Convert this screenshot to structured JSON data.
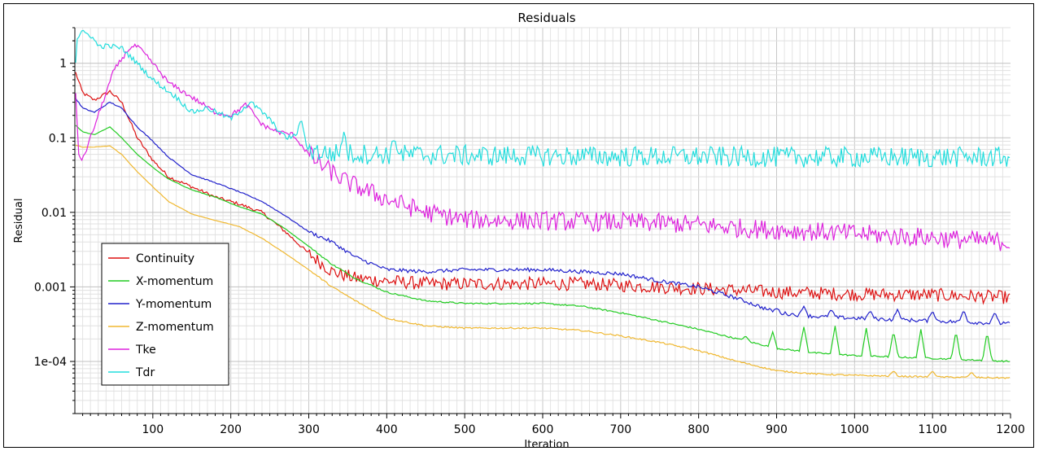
{
  "chart_data": {
    "type": "line",
    "title": "Residuals",
    "xlabel": "Iteration",
    "ylabel": "Residual",
    "xlim": [
      0,
      1200
    ],
    "ylim": [
      2e-05,
      3
    ],
    "y_scale": "log",
    "grid": true,
    "legend_position": "lower-left",
    "x_ticks": [
      {
        "value": 100,
        "label": "100"
      },
      {
        "value": 200,
        "label": "200"
      },
      {
        "value": 300,
        "label": "300"
      },
      {
        "value": 400,
        "label": "400"
      },
      {
        "value": 500,
        "label": "500"
      },
      {
        "value": 600,
        "label": "600"
      },
      {
        "value": 700,
        "label": "700"
      },
      {
        "value": 800,
        "label": "800"
      },
      {
        "value": 900,
        "label": "900"
      },
      {
        "value": 1000,
        "label": "1000"
      },
      {
        "value": 1100,
        "label": "1100"
      },
      {
        "value": 1200,
        "label": "1200"
      }
    ],
    "y_ticks": [
      {
        "value": 1,
        "label": "1"
      },
      {
        "value": 0.1,
        "label": "0.1"
      },
      {
        "value": 0.01,
        "label": "0.01"
      },
      {
        "value": 0.001,
        "label": "0.001"
      },
      {
        "value": 0.0001,
        "label": "1e-04"
      }
    ],
    "series": [
      {
        "name": "Continuity",
        "color": "#dd1111",
        "noise": 0.09,
        "spikes": [],
        "points": [
          [
            0,
            0.8
          ],
          [
            10,
            0.4
          ],
          [
            25,
            0.32
          ],
          [
            45,
            0.42
          ],
          [
            60,
            0.3
          ],
          [
            80,
            0.1
          ],
          [
            100,
            0.05
          ],
          [
            120,
            0.03
          ],
          [
            150,
            0.022
          ],
          [
            180,
            0.016
          ],
          [
            210,
            0.013
          ],
          [
            240,
            0.01
          ],
          [
            270,
            0.0055
          ],
          [
            300,
            0.0028
          ],
          [
            330,
            0.0016
          ],
          [
            360,
            0.0013
          ],
          [
            400,
            0.0012
          ],
          [
            450,
            0.0011
          ],
          [
            500,
            0.0011
          ],
          [
            550,
            0.0011
          ],
          [
            600,
            0.0011
          ],
          [
            650,
            0.0011
          ],
          [
            700,
            0.00105
          ],
          [
            750,
            0.001
          ],
          [
            800,
            0.00095
          ],
          [
            850,
            0.0009
          ],
          [
            900,
            0.00085
          ],
          [
            1000,
            0.0008
          ],
          [
            1100,
            0.00078
          ],
          [
            1200,
            0.00072
          ]
        ]
      },
      {
        "name": "X-momentum",
        "color": "#22cc22",
        "noise": 0.01,
        "spikes": [
          [
            860,
            0.00022
          ],
          [
            895,
            0.00025
          ],
          [
            935,
            0.00029
          ],
          [
            975,
            0.0003
          ],
          [
            1015,
            0.00028
          ],
          [
            1050,
            0.00026
          ],
          [
            1085,
            0.00027
          ],
          [
            1130,
            0.00026
          ],
          [
            1170,
            0.00025
          ]
        ],
        "points": [
          [
            0,
            0.15
          ],
          [
            10,
            0.12
          ],
          [
            25,
            0.11
          ],
          [
            45,
            0.14
          ],
          [
            60,
            0.1
          ],
          [
            80,
            0.06
          ],
          [
            100,
            0.04
          ],
          [
            120,
            0.028
          ],
          [
            150,
            0.02
          ],
          [
            180,
            0.016
          ],
          [
            210,
            0.012
          ],
          [
            240,
            0.0095
          ],
          [
            270,
            0.006
          ],
          [
            300,
            0.0035
          ],
          [
            330,
            0.002
          ],
          [
            360,
            0.0013
          ],
          [
            400,
            0.00085
          ],
          [
            450,
            0.00065
          ],
          [
            500,
            0.0006
          ],
          [
            550,
            0.0006
          ],
          [
            600,
            0.0006
          ],
          [
            650,
            0.00055
          ],
          [
            700,
            0.00045
          ],
          [
            750,
            0.00035
          ],
          [
            800,
            0.00027
          ],
          [
            850,
            0.0002
          ],
          [
            900,
            0.00015
          ],
          [
            950,
            0.00013
          ],
          [
            1000,
            0.00012
          ],
          [
            1100,
            0.00011
          ],
          [
            1200,
            0.0001
          ]
        ]
      },
      {
        "name": "Y-momentum",
        "color": "#2222cc",
        "noise": 0.025,
        "spikes": [
          [
            900,
            0.00052
          ],
          [
            935,
            0.00055
          ],
          [
            970,
            0.0005
          ],
          [
            1020,
            0.00048
          ],
          [
            1055,
            0.0005
          ],
          [
            1100,
            0.00048
          ],
          [
            1140,
            0.00049
          ],
          [
            1180,
            0.00046
          ]
        ],
        "points": [
          [
            0,
            0.35
          ],
          [
            10,
            0.25
          ],
          [
            25,
            0.22
          ],
          [
            45,
            0.3
          ],
          [
            60,
            0.25
          ],
          [
            80,
            0.14
          ],
          [
            100,
            0.09
          ],
          [
            120,
            0.055
          ],
          [
            150,
            0.032
          ],
          [
            180,
            0.025
          ],
          [
            210,
            0.019
          ],
          [
            240,
            0.014
          ],
          [
            270,
            0.009
          ],
          [
            300,
            0.0055
          ],
          [
            330,
            0.004
          ],
          [
            360,
            0.0025
          ],
          [
            400,
            0.0017
          ],
          [
            450,
            0.0016
          ],
          [
            500,
            0.0017
          ],
          [
            550,
            0.0017
          ],
          [
            600,
            0.0017
          ],
          [
            650,
            0.0016
          ],
          [
            700,
            0.0015
          ],
          [
            750,
            0.0012
          ],
          [
            800,
            0.001
          ],
          [
            850,
            0.0007
          ],
          [
            900,
            0.00045
          ],
          [
            950,
            0.0004
          ],
          [
            1000,
            0.00038
          ],
          [
            1100,
            0.00035
          ],
          [
            1200,
            0.00032
          ]
        ]
      },
      {
        "name": "Z-momentum",
        "color": "#f0b830",
        "noise": 0.01,
        "spikes": [
          [
            1050,
            7.5e-05
          ],
          [
            1100,
            7.5e-05
          ],
          [
            1150,
            7.2e-05
          ]
        ],
        "points": [
          [
            0,
            0.08
          ],
          [
            10,
            0.075
          ],
          [
            25,
            0.075
          ],
          [
            45,
            0.078
          ],
          [
            60,
            0.06
          ],
          [
            80,
            0.035
          ],
          [
            100,
            0.022
          ],
          [
            120,
            0.014
          ],
          [
            150,
            0.0095
          ],
          [
            180,
            0.0078
          ],
          [
            210,
            0.0065
          ],
          [
            240,
            0.0045
          ],
          [
            270,
            0.0028
          ],
          [
            300,
            0.0017
          ],
          [
            330,
            0.001
          ],
          [
            360,
            0.00065
          ],
          [
            400,
            0.00038
          ],
          [
            450,
            0.0003
          ],
          [
            500,
            0.00028
          ],
          [
            550,
            0.00028
          ],
          [
            600,
            0.00028
          ],
          [
            650,
            0.00026
          ],
          [
            700,
            0.00022
          ],
          [
            750,
            0.00018
          ],
          [
            800,
            0.00014
          ],
          [
            850,
            0.0001
          ],
          [
            900,
            7.5e-05
          ],
          [
            950,
            6.8e-05
          ],
          [
            1000,
            6.5e-05
          ],
          [
            1100,
            6.2e-05
          ],
          [
            1200,
            6e-05
          ]
        ]
      },
      {
        "name": "Tke",
        "color": "#dd22dd",
        "noise": 0.13,
        "spikes": [],
        "points": [
          [
            0,
            0.6
          ],
          [
            5,
            0.06
          ],
          [
            10,
            0.05
          ],
          [
            30,
            0.2
          ],
          [
            50,
            0.8
          ],
          [
            70,
            1.6
          ],
          [
            80,
            1.7
          ],
          [
            100,
            1.0
          ],
          [
            120,
            0.55
          ],
          [
            150,
            0.35
          ],
          [
            180,
            0.22
          ],
          [
            200,
            0.2
          ],
          [
            220,
            0.28
          ],
          [
            240,
            0.15
          ],
          [
            260,
            0.12
          ],
          [
            280,
            0.11
          ],
          [
            300,
            0.06
          ],
          [
            320,
            0.04
          ],
          [
            350,
            0.025
          ],
          [
            400,
            0.015
          ],
          [
            450,
            0.01
          ],
          [
            500,
            0.008
          ],
          [
            550,
            0.0078
          ],
          [
            600,
            0.0077
          ],
          [
            650,
            0.0075
          ],
          [
            700,
            0.0074
          ],
          [
            750,
            0.0072
          ],
          [
            800,
            0.0068
          ],
          [
            850,
            0.0062
          ],
          [
            900,
            0.0058
          ],
          [
            950,
            0.0055
          ],
          [
            1000,
            0.0052
          ],
          [
            1050,
            0.0048
          ],
          [
            1100,
            0.0046
          ],
          [
            1150,
            0.0042
          ],
          [
            1200,
            0.004
          ]
        ]
      },
      {
        "name": "Tdr",
        "color": "#22dddd",
        "noise": 0.14,
        "spikes": [
          [
            290,
            0.18
          ],
          [
            345,
            0.12
          ],
          [
            410,
            0.1
          ]
        ],
        "points": [
          [
            0,
            0.7
          ],
          [
            3,
            2.2
          ],
          [
            10,
            2.6
          ],
          [
            20,
            2.4
          ],
          [
            30,
            1.7
          ],
          [
            45,
            1.7
          ],
          [
            60,
            1.6
          ],
          [
            80,
            1.0
          ],
          [
            100,
            0.6
          ],
          [
            130,
            0.35
          ],
          [
            150,
            0.22
          ],
          [
            170,
            0.25
          ],
          [
            200,
            0.18
          ],
          [
            225,
            0.3
          ],
          [
            245,
            0.2
          ],
          [
            270,
            0.1
          ],
          [
            290,
            0.11
          ],
          [
            300,
            0.07
          ],
          [
            320,
            0.062
          ],
          [
            400,
            0.06
          ],
          [
            500,
            0.058
          ],
          [
            600,
            0.057
          ],
          [
            700,
            0.056
          ],
          [
            800,
            0.056
          ],
          [
            900,
            0.055
          ],
          [
            1000,
            0.055
          ],
          [
            1100,
            0.055
          ],
          [
            1200,
            0.055
          ]
        ]
      }
    ]
  }
}
